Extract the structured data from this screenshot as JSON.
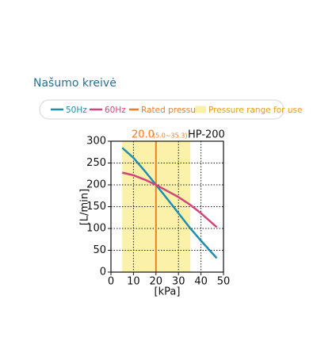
{
  "chart_data": {
    "type": "line",
    "title": "Našumo kreivė",
    "model": "HP-200",
    "x": [
      5,
      10,
      15,
      20,
      25,
      30,
      35,
      40,
      47
    ],
    "series": [
      {
        "name": "50Hz",
        "color": "#1f8fb0",
        "values": [
          285,
          262,
          232,
          200,
          168,
          135,
          102,
          72,
          32
        ]
      },
      {
        "name": "60Hz",
        "color": "#d1457a",
        "values": [
          228,
          222,
          212,
          200,
          186,
          172,
          155,
          135,
          103
        ]
      }
    ],
    "rated_pressure": {
      "name": "Rated pressure",
      "value": 20,
      "label": "20.0",
      "color": "#ef7d22"
    },
    "pressure_range": {
      "name": "Pressure range for use",
      "range": [
        5.0,
        35.3
      ],
      "label": "(5.0~35.3)",
      "color": "#fbf1a9"
    },
    "xlabel": "[kPa]",
    "ylabel": "[L/min]",
    "xlim": [
      0,
      50
    ],
    "xticks": [
      0,
      10,
      20,
      30,
      40,
      50
    ],
    "ylim": [
      0,
      300
    ],
    "yticks": [
      0,
      50,
      100,
      150,
      200,
      250,
      300
    ],
    "grid": true
  }
}
